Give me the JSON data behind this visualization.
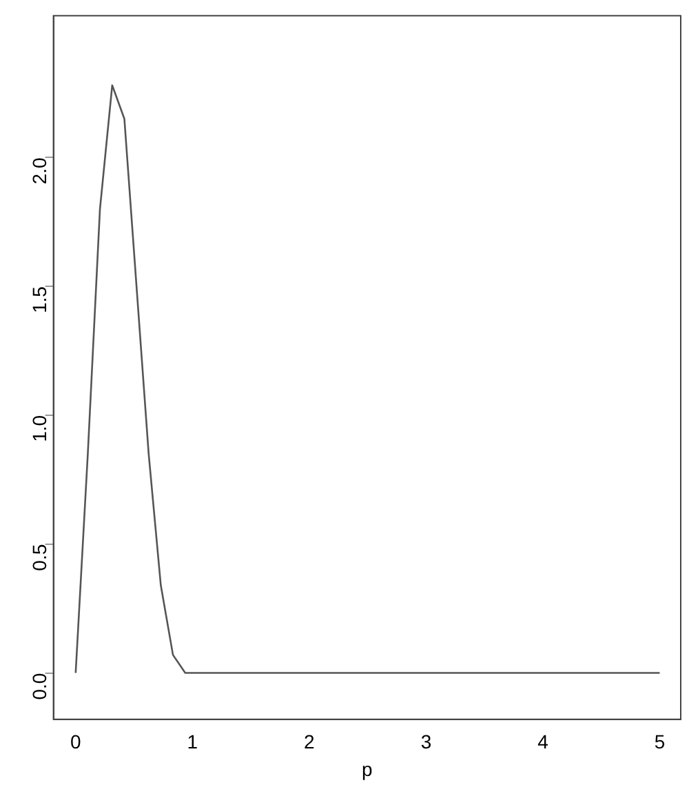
{
  "chart_data": {
    "type": "line",
    "xlabel": "p",
    "x": [
      0,
      0.104,
      0.208,
      0.313,
      0.417,
      0.521,
      0.625,
      0.729,
      0.833,
      0.938,
      5
    ],
    "values": [
      0,
      0.85,
      1.8,
      2.28,
      2.15,
      1.5,
      0.85,
      0.34,
      0.07,
      0,
      0
    ],
    "color": "#555555",
    "xlim": [
      -0.19,
      5.18
    ],
    "ylim": [
      -0.18,
      2.55
    ],
    "xticks": [
      0,
      1,
      2,
      3,
      4,
      5
    ],
    "yticks": [
      {
        "value": 0,
        "label": "0.0"
      },
      {
        "value": 0.5,
        "label": "0.5"
      },
      {
        "value": 1,
        "label": "1.0"
      },
      {
        "value": 1.5,
        "label": "1.5"
      },
      {
        "value": 2,
        "label": "2.0"
      }
    ],
    "grid": false,
    "legend": false,
    "marker": "none",
    "line_style": "solid"
  }
}
